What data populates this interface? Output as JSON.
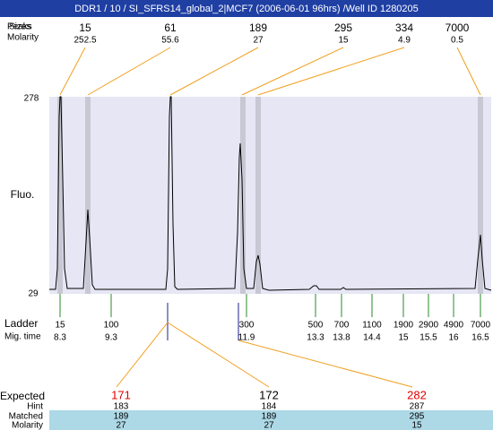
{
  "header": {
    "title": "DDR1 / 10 / SI_SFRS14_global_2|MCF7 (2006-06-01 96hrs) /Well ID 1280205"
  },
  "peak_table": {
    "peaks_label": "Peaks",
    "size_label": "Sizes",
    "molarity_label": "Molarity",
    "columns": [
      {
        "size": 15,
        "molarity": 252.5
      },
      {
        "size": 61,
        "molarity": 55.6
      },
      {
        "size": 189,
        "molarity": 27
      },
      {
        "size": 295,
        "molarity": 15
      },
      {
        "size": 334,
        "molarity": 4.9
      },
      {
        "size": 7000,
        "molarity": 0.5
      }
    ]
  },
  "y_axis": {
    "label": "Fluo.",
    "top": 278,
    "bottom": 29
  },
  "ladder": {
    "label": "Ladder",
    "mig_label": "Mig. time",
    "items": [
      {
        "size": 15,
        "mig": 8.3
      },
      {
        "size": 100,
        "mig": 9.3
      },
      {
        "size": 300,
        "mig": 11.9
      },
      {
        "size": 500,
        "mig": 13.3
      },
      {
        "size": 700,
        "mig": 13.8
      },
      {
        "size": 1100,
        "mig": 14.4
      },
      {
        "size": 1900,
        "mig": 15
      },
      {
        "size": 2900,
        "mig": 15.5
      },
      {
        "size": 4900,
        "mig": 16
      },
      {
        "size": 7000,
        "mig": 16.5
      }
    ]
  },
  "expected": {
    "label": "Expected",
    "row_labels": [
      "Hint",
      "Matched",
      "Molarity"
    ],
    "columns": [
      {
        "expected": 171,
        "hint": 183,
        "matched": 189,
        "molarity": 27,
        "color": "#e00000"
      },
      {
        "expected": 172,
        "hint": 184,
        "matched": 189,
        "molarity": 27,
        "color": "#000000"
      },
      {
        "expected": 282,
        "hint": 287,
        "matched": 295,
        "molarity": 15,
        "color": "#e00000"
      }
    ]
  }
}
